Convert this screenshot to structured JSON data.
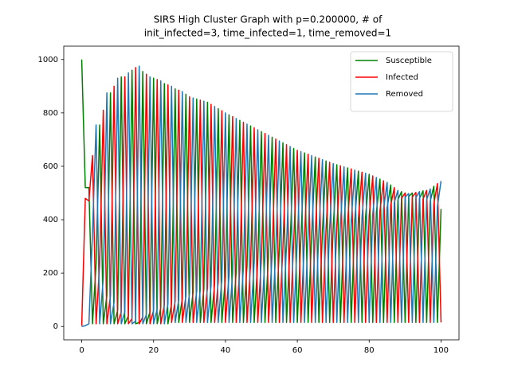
{
  "chart_data": {
    "type": "line",
    "title": [
      "SIRS High Cluster Graph with p=0.200000, # of",
      "init_infected=3, time_infected=1, time_removed=1"
    ],
    "x": [
      0,
      1,
      2,
      3,
      4,
      5,
      6,
      7,
      8,
      9,
      10,
      11,
      12,
      13,
      14,
      15,
      16,
      17,
      18,
      19,
      20,
      21,
      22,
      23,
      24,
      25,
      26,
      27,
      28,
      29,
      30,
      31,
      32,
      33,
      34,
      35,
      36,
      37,
      38,
      39,
      40,
      41,
      42,
      43,
      44,
      45,
      46,
      47,
      48,
      49,
      50,
      51,
      52,
      53,
      54,
      55,
      56,
      57,
      58,
      59,
      60,
      61,
      62,
      63,
      64,
      65,
      66,
      67,
      68,
      69,
      70,
      71,
      72,
      73,
      74,
      75,
      76,
      77,
      78,
      79,
      80,
      81,
      82,
      83,
      84,
      85,
      86,
      87,
      88,
      89,
      90,
      91,
      92,
      93,
      94,
      95,
      96,
      97,
      98,
      99,
      100
    ],
    "series": [
      {
        "name": "Susceptible",
        "color": "#008000",
        "values": [
          1000,
          520,
          520,
          10,
          235,
          755,
          10,
          115,
          875,
          10,
          60,
          935,
          10,
          40,
          960,
          10,
          15,
          955,
          10,
          55,
          930,
          10,
          70,
          910,
          10,
          85,
          890,
          15,
          105,
          870,
          15,
          129,
          852,
          15,
          141,
          840,
          15,
          161,
          816,
          15,
          185,
          793,
          15,
          206,
          772,
          15,
          227,
          751,
          15,
          248,
          730,
          15,
          269,
          709,
          15,
          290,
          688,
          15,
          311,
          667,
          15,
          330,
          650,
          15,
          345,
          635,
          15,
          360,
          620,
          15,
          375,
          606,
          15,
          387,
          594,
          15,
          399,
          582,
          15,
          411,
          570,
          15,
          427,
          552,
          15,
          445,
          530,
          15,
          475,
          505,
          15,
          487,
          500,
          15,
          480,
          508,
          15,
          470,
          525,
          15,
          440
        ]
      },
      {
        "name": "Infected",
        "color": "#ff0000",
        "values": [
          3,
          480,
          470,
          640,
          10,
          235,
          810,
          10,
          115,
          900,
          10,
          55,
          935,
          10,
          30,
          970,
          10,
          35,
          945,
          10,
          60,
          925,
          10,
          80,
          905,
          15,
          95,
          885,
          15,
          115,
          860,
          15,
          133,
          848,
          15,
          145,
          832,
          15,
          169,
          808,
          15,
          192,
          786,
          15,
          213,
          765,
          15,
          234,
          744,
          15,
          255,
          723,
          15,
          276,
          702,
          15,
          297,
          681,
          15,
          318,
          660,
          15,
          335,
          645,
          15,
          350,
          630,
          15,
          365,
          615,
          15,
          379,
          602,
          15,
          391,
          590,
          15,
          403,
          578,
          15,
          415,
          564,
          15,
          433,
          546,
          15,
          455,
          520,
          15,
          480,
          500,
          15,
          485,
          502,
          15,
          477,
          510,
          15,
          460,
          535,
          15
        ]
      },
      {
        "name": "Removed",
        "color": "#1f77b4",
        "values": [
          0,
          3,
          10,
          350,
          755,
          10,
          180,
          875,
          10,
          90,
          930,
          10,
          55,
          950,
          10,
          20,
          975,
          10,
          45,
          935,
          10,
          65,
          920,
          10,
          85,
          900,
          15,
          100,
          880,
          15,
          125,
          856,
          15,
          137,
          844,
          15,
          153,
          824,
          15,
          177,
          800,
          15,
          199,
          779,
          15,
          220,
          758,
          15,
          241,
          737,
          15,
          262,
          716,
          15,
          283,
          695,
          15,
          304,
          674,
          15,
          325,
          655,
          15,
          340,
          640,
          15,
          355,
          625,
          15,
          370,
          610,
          15,
          383,
          598,
          15,
          395,
          586,
          15,
          407,
          574,
          15,
          421,
          558,
          15,
          439,
          540,
          15,
          465,
          510,
          15,
          485,
          498,
          15,
          483,
          505,
          15,
          475,
          515,
          15,
          450,
          545
        ]
      }
    ],
    "xlim": [
      -5,
      105
    ],
    "ylim": [
      -50,
      1050
    ],
    "xticks": [
      0,
      20,
      40,
      60,
      80,
      100
    ],
    "yticks": [
      0,
      200,
      400,
      600,
      800,
      1000
    ],
    "grid": false,
    "legend": "upper right"
  }
}
